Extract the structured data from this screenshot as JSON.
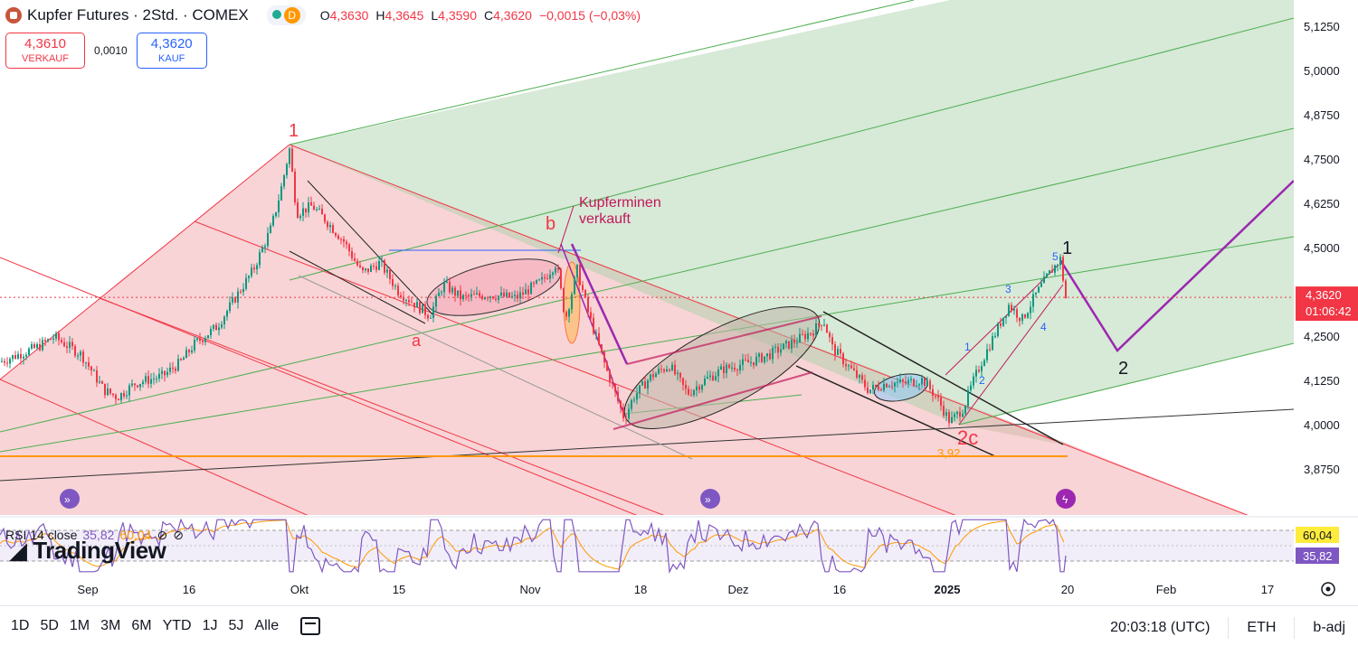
{
  "header": {
    "title": "Kupfer Futures · 2Std. · COMEX",
    "d_badge": "D",
    "open_label": "O",
    "open": "4,3630",
    "high_label": "H",
    "high": "4,3645",
    "low_label": "L",
    "low": "4,3590",
    "close_label": "C",
    "close": "4,3620",
    "change": "−0,0015 (−0,03%)"
  },
  "trade": {
    "sell_price": "4,3610",
    "sell_label": "VERKAUF",
    "spread": "0,0010",
    "buy_price": "4,3620",
    "buy_label": "KAUF"
  },
  "price_axis": {
    "ticks": [
      "5,1250",
      "5,0000",
      "4,8750",
      "4,7500",
      "4,6250",
      "4,5000",
      "4,3750",
      "4,2500",
      "4,1250",
      "4,0000",
      "3,8750"
    ],
    "current_price": "4,3620",
    "countdown": "01:06:42"
  },
  "time_axis": {
    "ticks": [
      "Sep",
      "16",
      "Okt",
      "15",
      "Nov",
      "18",
      "Dez",
      "16",
      "2025",
      "20",
      "Feb",
      "17"
    ]
  },
  "annotations": {
    "wave_1_top": "1",
    "wave_a": "a",
    "wave_b": "b",
    "wave_2c": "2c",
    "kupferminen": [
      "Kupferminen",
      "verkauft"
    ],
    "level_392": "3,92",
    "sub_1": "1",
    "sub_2": "2",
    "sub_3": "3",
    "sub_4": "4",
    "sub_5": "5",
    "proj_1": "1",
    "proj_2": "2"
  },
  "rsi": {
    "label": "RSI 14 close",
    "rsi_value": "35,82",
    "ma_value": "60,04",
    "axis_upper": "60,04",
    "axis_lower": "35,82"
  },
  "watermark": "TradingView",
  "bottom": {
    "ranges": [
      "1D",
      "5D",
      "1M",
      "3M",
      "6M",
      "YTD",
      "1J",
      "5J",
      "Alle"
    ],
    "clock": "20:03:18 (UTC)",
    "session": "ETH",
    "adj": "b-adj"
  },
  "colors": {
    "up": "#089981",
    "down": "#f23645",
    "red_fork": "#f23645",
    "green_fork": "#4caf50",
    "orange_support": "#ff9800",
    "projection": "#9c27b0",
    "rsi_line": "#7e57c2",
    "rsi_ma": "#ff9800"
  },
  "chart_data": {
    "type": "candlestick",
    "interval": "2Std.",
    "ylim": [
      3.83,
      5.16
    ],
    "current": 4.362,
    "support_level": 3.92,
    "price_path": [
      [
        0,
        4.18
      ],
      [
        40,
        4.22
      ],
      [
        60,
        4.25
      ],
      [
        90,
        4.2
      ],
      [
        115,
        4.1
      ],
      [
        130,
        4.08
      ],
      [
        150,
        4.12
      ],
      [
        180,
        4.14
      ],
      [
        200,
        4.18
      ],
      [
        215,
        4.23
      ],
      [
        240,
        4.28
      ],
      [
        260,
        4.36
      ],
      [
        280,
        4.44
      ],
      [
        300,
        4.56
      ],
      [
        310,
        4.66
      ],
      [
        320,
        4.78
      ],
      [
        328,
        4.6
      ],
      [
        345,
        4.62
      ],
      [
        360,
        4.58
      ],
      [
        380,
        4.52
      ],
      [
        400,
        4.43
      ],
      [
        420,
        4.46
      ],
      [
        440,
        4.38
      ],
      [
        460,
        4.34
      ],
      [
        475,
        4.31
      ],
      [
        490,
        4.4
      ],
      [
        510,
        4.36
      ],
      [
        540,
        4.37
      ],
      [
        570,
        4.36
      ],
      [
        600,
        4.41
      ],
      [
        615,
        4.46
      ],
      [
        625,
        4.3
      ],
      [
        638,
        4.44
      ],
      [
        650,
        4.32
      ],
      [
        670,
        4.16
      ],
      [
        690,
        4.02
      ],
      [
        700,
        4.08
      ],
      [
        720,
        4.14
      ],
      [
        740,
        4.17
      ],
      [
        760,
        4.09
      ],
      [
        780,
        4.13
      ],
      [
        800,
        4.16
      ],
      [
        830,
        4.18
      ],
      [
        850,
        4.2
      ],
      [
        880,
        4.24
      ],
      [
        900,
        4.27
      ],
      [
        910,
        4.3
      ],
      [
        920,
        4.22
      ],
      [
        940,
        4.16
      ],
      [
        960,
        4.1
      ],
      [
        980,
        4.12
      ],
      [
        1000,
        4.12
      ],
      [
        1020,
        4.13
      ],
      [
        1035,
        4.08
      ],
      [
        1050,
        4.01
      ],
      [
        1065,
        4.05
      ],
      [
        1075,
        4.12
      ],
      [
        1085,
        4.18
      ],
      [
        1100,
        4.26
      ],
      [
        1115,
        4.34
      ],
      [
        1130,
        4.3
      ],
      [
        1145,
        4.37
      ],
      [
        1160,
        4.43
      ],
      [
        1172,
        4.47
      ],
      [
        1178,
        4.36
      ]
    ]
  }
}
